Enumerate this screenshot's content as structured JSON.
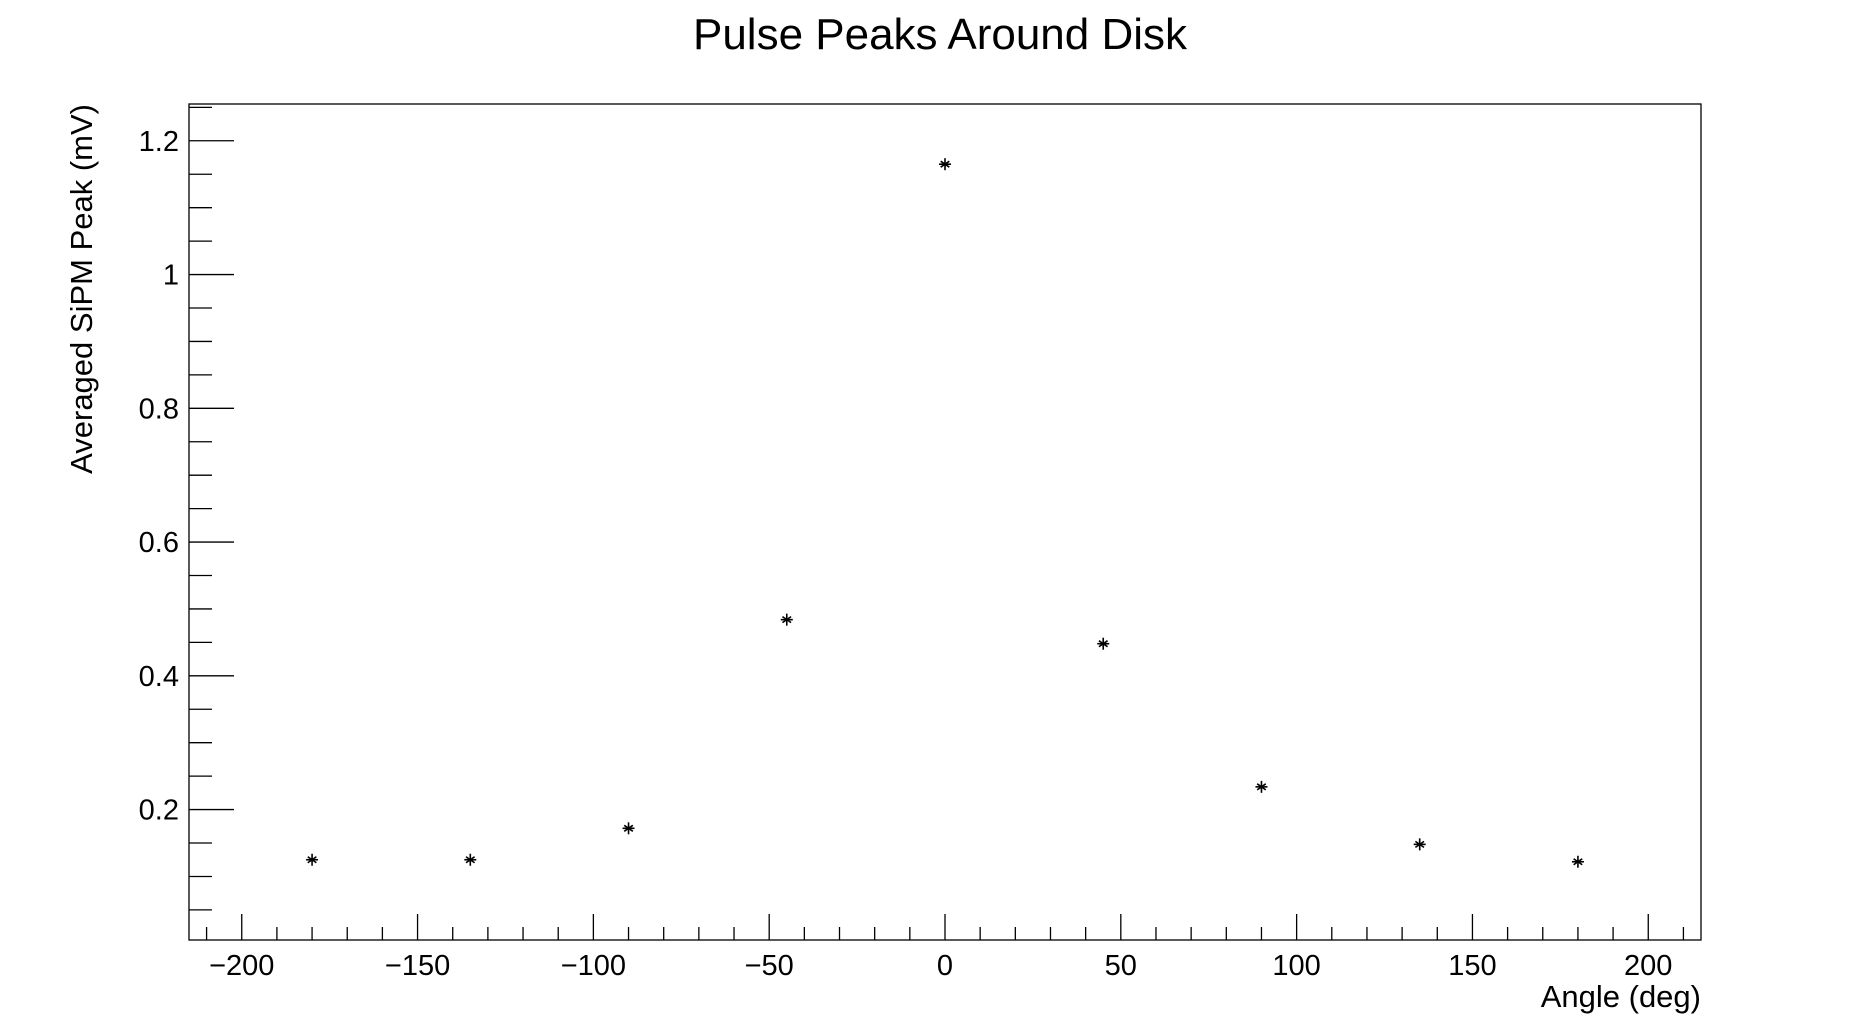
{
  "chart_data": {
    "type": "scatter",
    "title": "Pulse Peaks Around Disk",
    "xlabel": "Angle (deg)",
    "ylabel": "Averaged SiPM Peak (mV)",
    "xlim": [
      -215,
      215
    ],
    "ylim": [
      0.005,
      1.255
    ],
    "x_ticks": [
      -200,
      -150,
      -100,
      -50,
      0,
      50,
      100,
      150,
      200
    ],
    "x_tick_labels": [
      "−200",
      "−150",
      "−100",
      "−50",
      "0",
      "50",
      "100",
      "150",
      "200"
    ],
    "y_ticks": [
      0.2,
      0.4,
      0.6,
      0.8,
      1.0,
      1.2
    ],
    "y_tick_labels": [
      "0.2",
      "0.4",
      "0.6",
      "0.8",
      "1",
      "1.2"
    ],
    "grid": false,
    "marker": "asterisk",
    "series": [
      {
        "x": [
          -180,
          -135,
          -90,
          -45,
          0,
          45,
          90,
          135,
          180
        ],
        "y": [
          0.125,
          0.125,
          0.172,
          0.484,
          1.165,
          0.448,
          0.234,
          0.148,
          0.122
        ]
      }
    ]
  }
}
